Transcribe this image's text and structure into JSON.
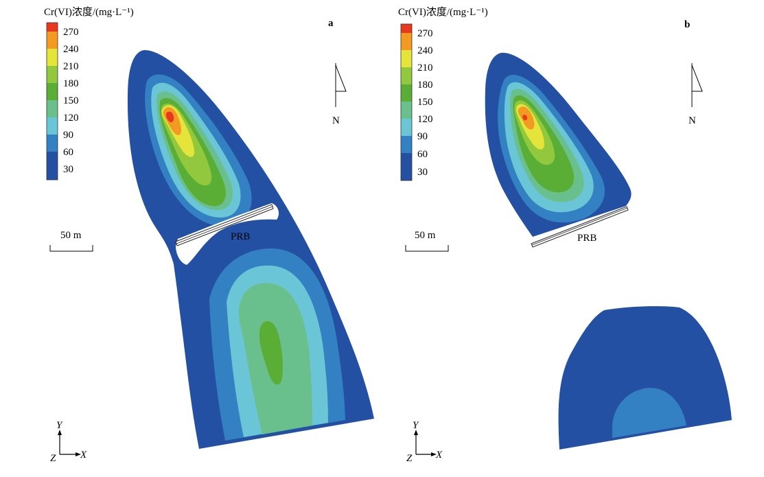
{
  "legend": {
    "title": "Cr(VI)浓度/(mg·L⁻¹)",
    "levels": [
      {
        "label": "270",
        "color": "#e8391f"
      },
      {
        "label": "240",
        "color": "#f39a22"
      },
      {
        "label": "210",
        "color": "#e4e43a"
      },
      {
        "label": "180",
        "color": "#92c83e"
      },
      {
        "label": "150",
        "color": "#5aae35"
      },
      {
        "label": "120",
        "color": "#6ac08d"
      },
      {
        "label": "90",
        "color": "#6ac6d6"
      },
      {
        "label": "60",
        "color": "#3380c3"
      },
      {
        "label": "30",
        "color": "#2350a2"
      }
    ]
  },
  "panels": [
    {
      "label": "a",
      "north": "N",
      "scale": "50 m",
      "prb": "PRB",
      "axes": {
        "y": "Y",
        "x": "X",
        "z": "Z"
      }
    },
    {
      "label": "b",
      "north": "N",
      "scale": "50 m",
      "prb": "PRB",
      "axes": {
        "y": "Y",
        "x": "X",
        "z": "Z"
      }
    }
  ]
}
